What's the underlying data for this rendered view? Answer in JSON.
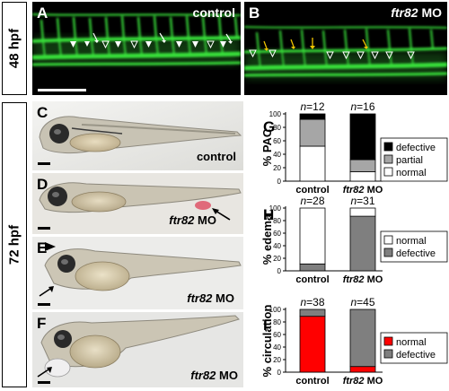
{
  "stages": {
    "top": "48 hpf",
    "bottom": "72 hpf"
  },
  "panels": {
    "A": {
      "letter": "A",
      "condition": "control"
    },
    "B": {
      "letter": "B",
      "gene": "ftr82",
      "treatment": "MO"
    },
    "C": {
      "letter": "C",
      "condition": "control"
    },
    "D": {
      "letter": "D",
      "gene": "ftr82",
      "treatment": "MO"
    },
    "E": {
      "letter": "E",
      "gene": "ftr82",
      "treatment": "MO"
    },
    "F": {
      "letter": "F",
      "gene": "ftr82",
      "treatment": "MO"
    }
  },
  "colors": {
    "fluorescence": "#39e03a",
    "defective_pac": "#000000",
    "partial_pac": "#a6a6a6",
    "normal": "#ffffff",
    "defective": "#7f7f7f",
    "normal_circulation": "#ff0000",
    "arrowhead_yellow": "#f0c400"
  },
  "chart_data": [
    {
      "panel": "G",
      "type": "bar",
      "stacked": true,
      "ylabel": "% PAC",
      "ylim": [
        0,
        100
      ],
      "yticks": [
        0,
        20,
        40,
        60,
        80,
        100
      ],
      "categories": [
        {
          "plain": "control",
          "gene": "",
          "suffix": ""
        },
        {
          "plain": "",
          "gene": "ftr82",
          "suffix": "MO"
        }
      ],
      "n_prefix": "n",
      "n": [
        "12",
        "16"
      ],
      "series": [
        {
          "name": "normal",
          "color": "#ffffff",
          "values": [
            52,
            14
          ]
        },
        {
          "name": "partial",
          "color": "#a6a6a6",
          "values": [
            40,
            18
          ]
        },
        {
          "name": "defective",
          "color": "#000000",
          "values": [
            8,
            68
          ]
        }
      ],
      "legend_order": [
        "defective",
        "partial",
        "normal"
      ],
      "legend_position": "right"
    },
    {
      "panel": "H",
      "type": "bar",
      "stacked": true,
      "ylabel": "% edema",
      "ylim": [
        0,
        100
      ],
      "yticks": [
        0,
        20,
        40,
        60,
        80,
        100
      ],
      "categories": [
        {
          "plain": "control",
          "gene": "",
          "suffix": ""
        },
        {
          "plain": "",
          "gene": "ftr82",
          "suffix": "MO"
        }
      ],
      "n_prefix": "n",
      "n": [
        "28",
        "31"
      ],
      "series": [
        {
          "name": "defective",
          "color": "#7f7f7f",
          "values": [
            11,
            87
          ]
        },
        {
          "name": "normal",
          "color": "#ffffff",
          "values": [
            89,
            13
          ]
        }
      ],
      "legend_order": [
        "normal",
        "defective"
      ],
      "legend_position": "right"
    },
    {
      "panel": "I",
      "type": "bar",
      "stacked": true,
      "ylabel": "% circulation",
      "ylim": [
        0,
        100
      ],
      "yticks": [
        0,
        20,
        40,
        60,
        80,
        100
      ],
      "categories": [
        {
          "plain": "control",
          "gene": "",
          "suffix": ""
        },
        {
          "plain": "",
          "gene": "ftr82",
          "suffix": "MO"
        }
      ],
      "n_prefix": "n",
      "n": [
        "38",
        "45"
      ],
      "series": [
        {
          "name": "normal",
          "color": "#ff0000",
          "values": [
            89,
            9
          ]
        },
        {
          "name": "defective",
          "color": "#7f7f7f",
          "values": [
            11,
            91
          ]
        }
      ],
      "legend_order": [
        "normal",
        "defective"
      ],
      "legend_position": "right"
    }
  ]
}
